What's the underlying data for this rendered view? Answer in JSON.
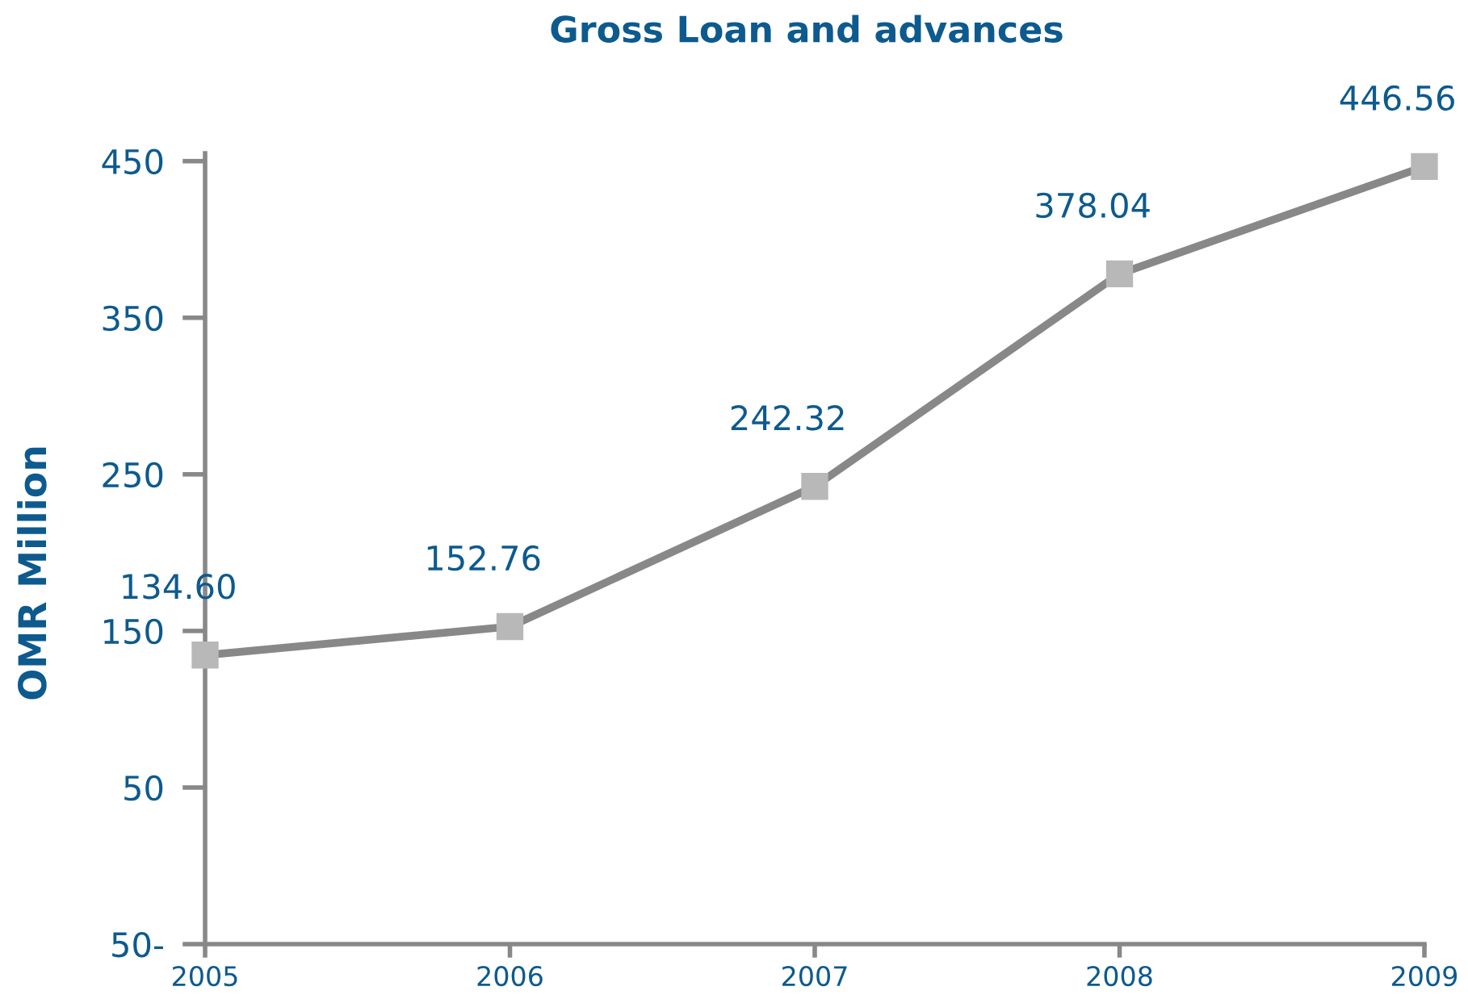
{
  "chart_data": {
    "type": "line",
    "title": "Gross Loan and advances",
    "ylabel": "OMR Million",
    "x": [
      2005,
      2006,
      2007,
      2008,
      2009
    ],
    "series": [
      {
        "color": "#888888",
        "values": [
          134.6,
          152.76,
          242.32,
          378.04,
          446.56
        ],
        "value_labels": [
          "134.60",
          "152.76",
          "242.32",
          "378.04",
          "446.56"
        ]
      }
    ],
    "xlim": [
      2005,
      2009
    ],
    "xticks": [
      2005,
      2006,
      2007,
      2008,
      2009
    ],
    "ylim": [
      -50,
      455
    ],
    "yticks": [
      {
        "value": -50,
        "label": "50-"
      },
      50,
      150,
      250,
      350,
      450
    ],
    "marker": "square",
    "line_style": "solid",
    "grid": false,
    "legend": false
  }
}
